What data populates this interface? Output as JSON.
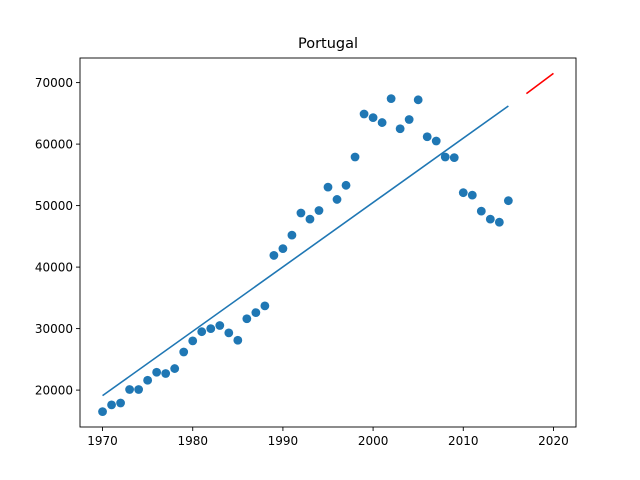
{
  "chart_data": {
    "type": "scatter",
    "title": "Portugal",
    "xlabel": "",
    "ylabel": "",
    "xlim": [
      1967.5,
      2022.5
    ],
    "ylim": [
      14000,
      74000
    ],
    "x_ticks": [
      1970,
      1980,
      1990,
      2000,
      2010,
      2020
    ],
    "y_ticks": [
      20000,
      30000,
      40000,
      50000,
      60000,
      70000
    ],
    "grid": false,
    "legend": "none",
    "colors": {
      "points": "#1f77b4",
      "fit": "#1f77b4",
      "projection": "#ff0000"
    },
    "series": [
      {
        "kind": "points",
        "x": [
          1970,
          1971,
          1972,
          1973,
          1974,
          1975,
          1976,
          1977,
          1978,
          1979,
          1980,
          1981,
          1982,
          1983,
          1984,
          1985,
          1986,
          1987,
          1988,
          1989,
          1990,
          1991,
          1992,
          1993,
          1994,
          1995,
          1996,
          1997,
          1998,
          1999,
          2000,
          2001,
          2002,
          2003,
          2004,
          2005,
          2006,
          2007,
          2008,
          2009,
          2010,
          2011,
          2012,
          2013,
          2014,
          2015
        ],
        "y": [
          16500,
          17600,
          17900,
          20100,
          20100,
          21600,
          22900,
          22700,
          23500,
          26200,
          28000,
          29500,
          30000,
          30500,
          29300,
          28100,
          31600,
          32600,
          33700,
          41900,
          43000,
          45200,
          48800,
          47800,
          49200,
          53000,
          51000,
          53300,
          57900,
          64900,
          64300,
          63500,
          67400,
          62500,
          64000,
          67200,
          61200,
          60500,
          57900,
          57800,
          52100,
          51700,
          49100,
          47800,
          47300,
          50800
        ]
      },
      {
        "kind": "fit-line",
        "x": [
          1970,
          2015
        ],
        "y": [
          19100,
          66200
        ]
      },
      {
        "kind": "projection-line",
        "x": [
          2017,
          2020
        ],
        "y": [
          68200,
          71500
        ]
      }
    ]
  }
}
